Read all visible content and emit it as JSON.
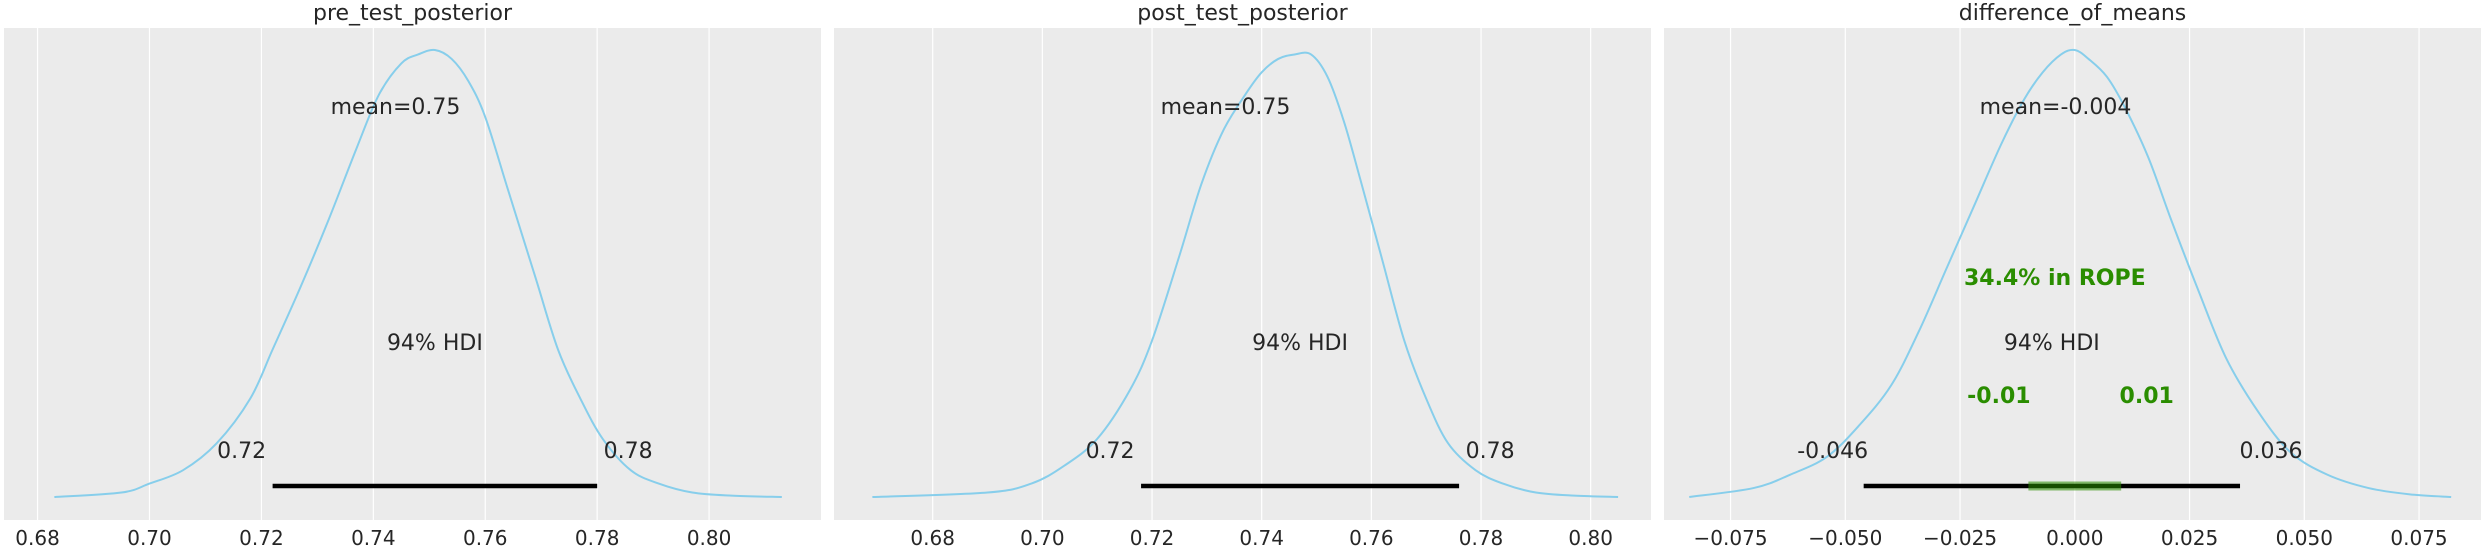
{
  "chart_data": [
    {
      "type": "kde",
      "title": "pre_test_posterior",
      "xlabel": "",
      "ylabel": "",
      "xlim": [
        0.674,
        0.82
      ],
      "x_ticks": [
        0.68,
        0.7,
        0.72,
        0.74,
        0.76,
        0.78,
        0.8
      ],
      "tick_labels": [
        "0.68",
        "0.70",
        "0.72",
        "0.74",
        "0.76",
        "0.78",
        "0.80"
      ],
      "curve_color": "#87ceeb",
      "grid": true,
      "kde": {
        "x": [
          0.683,
          0.695,
          0.7,
          0.706,
          0.712,
          0.718,
          0.722,
          0.727,
          0.732,
          0.737,
          0.741,
          0.745,
          0.748,
          0.751,
          0.754,
          0.757,
          0.76,
          0.764,
          0.769,
          0.773,
          0.777,
          0.781,
          0.786,
          0.791,
          0.797,
          0.804,
          0.813
        ],
        "density": [
          0.0,
          0.01,
          0.03,
          0.06,
          0.12,
          0.22,
          0.33,
          0.47,
          0.62,
          0.78,
          0.9,
          0.97,
          0.99,
          1.0,
          0.98,
          0.93,
          0.85,
          0.69,
          0.49,
          0.33,
          0.22,
          0.13,
          0.06,
          0.03,
          0.01,
          0.003,
          0.0
        ]
      },
      "mean_label": "mean=0.75",
      "hdi": {
        "label": "94% HDI",
        "low": 0.722,
        "high": 0.78,
        "low_label": "0.72",
        "high_label": "0.78"
      }
    },
    {
      "type": "kde",
      "title": "post_test_posterior",
      "xlabel": "",
      "ylabel": "",
      "xlim": [
        0.662,
        0.811
      ],
      "x_ticks": [
        0.68,
        0.7,
        0.72,
        0.74,
        0.76,
        0.78,
        0.8
      ],
      "tick_labels": [
        "0.68",
        "0.70",
        "0.72",
        "0.74",
        "0.76",
        "0.78",
        "0.80"
      ],
      "curve_color": "#87ceeb",
      "grid": true,
      "kde": {
        "x": [
          0.669,
          0.69,
          0.698,
          0.704,
          0.71,
          0.716,
          0.72,
          0.725,
          0.729,
          0.733,
          0.737,
          0.74,
          0.743,
          0.746,
          0.749,
          0.752,
          0.755,
          0.758,
          0.762,
          0.766,
          0.77,
          0.774,
          0.779,
          0.784,
          0.79,
          0.797,
          0.805
        ],
        "density": [
          0.0,
          0.01,
          0.03,
          0.07,
          0.13,
          0.24,
          0.35,
          0.54,
          0.7,
          0.82,
          0.9,
          0.95,
          0.98,
          0.99,
          0.99,
          0.94,
          0.84,
          0.71,
          0.53,
          0.35,
          0.22,
          0.12,
          0.06,
          0.03,
          0.01,
          0.003,
          0.0
        ]
      },
      "mean_label": "mean=0.75",
      "hdi": {
        "label": "94% HDI",
        "low": 0.718,
        "high": 0.776,
        "low_label": "0.72",
        "high_label": "0.78"
      }
    },
    {
      "type": "kde",
      "title": "difference_of_means",
      "xlabel": "",
      "ylabel": "",
      "xlim": [
        -0.0895,
        0.0885
      ],
      "x_ticks": [
        -0.075,
        -0.05,
        -0.025,
        0.0,
        0.025,
        0.05,
        0.075
      ],
      "tick_labels": [
        "−0.075",
        "−0.050",
        "−0.025",
        "0.000",
        "0.025",
        "0.050",
        "0.075"
      ],
      "curve_color": "#87ceeb",
      "grid": true,
      "kde": {
        "x": [
          -0.084,
          -0.07,
          -0.062,
          -0.054,
          -0.047,
          -0.04,
          -0.034,
          -0.028,
          -0.022,
          -0.016,
          -0.011,
          -0.007,
          -0.003,
          0.0,
          0.003,
          0.007,
          0.011,
          0.016,
          0.021,
          0.027,
          0.033,
          0.04,
          0.047,
          0.055,
          0.064,
          0.073,
          0.082
        ],
        "density": [
          0.0,
          0.02,
          0.05,
          0.09,
          0.16,
          0.25,
          0.37,
          0.51,
          0.65,
          0.79,
          0.89,
          0.95,
          0.99,
          1.0,
          0.98,
          0.94,
          0.87,
          0.76,
          0.62,
          0.46,
          0.31,
          0.19,
          0.1,
          0.05,
          0.02,
          0.006,
          0.0
        ]
      },
      "mean_label": "mean=-0.004",
      "hdi": {
        "label": "94% HDI",
        "low": -0.046,
        "high": 0.036,
        "low_label": "-0.046",
        "high_label": "0.036"
      },
      "rope": {
        "low": -0.01,
        "high": 0.01,
        "low_label": "-0.01",
        "high_label": "0.01",
        "label": "34.4% in ROPE",
        "color": "#2a8d00"
      }
    }
  ]
}
